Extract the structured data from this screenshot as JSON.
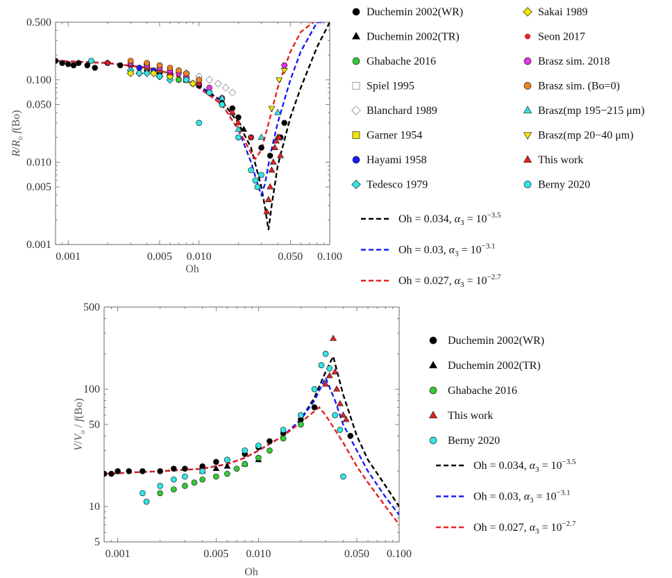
{
  "chart_data": [
    {
      "type": "scatter",
      "xlabel": "Oh",
      "ylabel": "R/R_o f(Bo)",
      "x_scale": "log",
      "y_scale": "log",
      "xlim": [
        0.0008,
        0.1
      ],
      "ylim": [
        0.001,
        0.5
      ],
      "x_ticks": [
        0.001,
        0.005,
        0.01,
        0.05,
        0.1
      ],
      "x_tick_labels": [
        "0.001",
        "0.005",
        "0.010",
        "0.050",
        "0.100"
      ],
      "y_ticks": [
        0.001,
        0.005,
        0.01,
        0.05,
        0.1,
        0.5
      ],
      "y_tick_labels": [
        "0.001",
        "0.005",
        "0.010",
        "0.050",
        "0.100",
        "0.500"
      ],
      "series": [
        {
          "name": "Duchemin 2002(WR)",
          "marker": "circle",
          "color": "#000000",
          "x": [
            0.0008,
            0.0009,
            0.001,
            0.0011,
            0.0012,
            0.0014,
            0.0016,
            0.002,
            0.0025,
            0.003,
            0.0035,
            0.004,
            0.005,
            0.006,
            0.007,
            0.008,
            0.01,
            0.012,
            0.015,
            0.018,
            0.02,
            0.025,
            0.03,
            0.035,
            0.042,
            0.045
          ],
          "y": [
            0.17,
            0.16,
            0.155,
            0.15,
            0.16,
            0.15,
            0.14,
            0.16,
            0.15,
            0.15,
            0.14,
            0.13,
            0.12,
            0.11,
            0.1,
            0.1,
            0.085,
            0.07,
            0.06,
            0.045,
            0.035,
            0.02,
            0.015,
            0.012,
            0.02,
            0.03
          ]
        },
        {
          "name": "Duchemin 2002(TR)",
          "marker": "triangle",
          "color": "#000000",
          "x": [
            0.015,
            0.018,
            0.02,
            0.022
          ],
          "y": [
            0.055,
            0.04,
            0.03,
            0.025
          ]
        },
        {
          "name": "Ghabache 2016",
          "marker": "circle",
          "color": "#33cc33",
          "x": [
            0.004,
            0.005,
            0.007,
            0.009,
            0.012,
            0.015
          ],
          "y": [
            0.14,
            0.13,
            0.1,
            0.09,
            0.07,
            0.05
          ]
        },
        {
          "name": "Spiel 1995",
          "marker": "square-open",
          "color": "#888888",
          "x": [
            0.004,
            0.006,
            0.008
          ],
          "y": [
            0.15,
            0.12,
            0.1
          ]
        },
        {
          "name": "Blanchard 1989",
          "marker": "diamond-open",
          "color": "#888888",
          "x": [
            0.008,
            0.01,
            0.012,
            0.014,
            0.016,
            0.018
          ],
          "y": [
            0.12,
            0.11,
            0.1,
            0.09,
            0.08,
            0.07
          ]
        },
        {
          "name": "Garner 1954",
          "marker": "square",
          "color": "#f2e600",
          "x": [
            0.004,
            0.006,
            0.008
          ],
          "y": [
            0.15,
            0.12,
            0.1
          ]
        },
        {
          "name": "Hayami 1958",
          "marker": "circle",
          "color": "#1a1aff",
          "x": [
            0.0035,
            0.0045,
            0.006,
            0.008,
            0.01
          ],
          "y": [
            0.14,
            0.13,
            0.12,
            0.1,
            0.09
          ]
        },
        {
          "name": "Tedesco 1979",
          "marker": "diamond",
          "color": "#33e6e6",
          "x": [
            0.003,
            0.0035,
            0.004,
            0.005,
            0.006
          ],
          "y": [
            0.13,
            0.12,
            0.12,
            0.11,
            0.1
          ]
        },
        {
          "name": "Sakai 1989",
          "marker": "diamond",
          "color": "#f2e600",
          "x": [
            0.003,
            0.0045,
            0.006,
            0.009
          ],
          "y": [
            0.12,
            0.12,
            0.11,
            0.09
          ]
        },
        {
          "name": "Seon 2017",
          "marker": "circle-small",
          "color": "#dd2222",
          "x": [
            0.002,
            0.003,
            0.004,
            0.005,
            0.006,
            0.008,
            0.01,
            0.012,
            0.015,
            0.018,
            0.02,
            0.025
          ],
          "y": [
            0.16,
            0.15,
            0.14,
            0.13,
            0.12,
            0.1,
            0.09,
            0.07,
            0.05,
            0.04,
            0.03,
            0.02
          ]
        },
        {
          "name": "Brasz sim. 2018",
          "marker": "circle",
          "color": "#e633e6",
          "x": [
            0.003,
            0.004,
            0.005,
            0.006,
            0.007,
            0.008,
            0.01,
            0.012,
            0.015,
            0.045
          ],
          "y": [
            0.16,
            0.15,
            0.14,
            0.13,
            0.12,
            0.11,
            0.1,
            0.08,
            0.06,
            0.15
          ]
        },
        {
          "name": "Brasz sim. (Bo=0)",
          "marker": "circle",
          "color": "#f08020",
          "x": [
            0.003,
            0.004,
            0.005,
            0.006,
            0.007,
            0.008,
            0.01
          ],
          "y": [
            0.17,
            0.16,
            0.15,
            0.14,
            0.13,
            0.12,
            0.1
          ]
        },
        {
          "name": "Brasz(mp 195−215 μm)",
          "marker": "triangle",
          "color": "#33e6e6",
          "x": [
            0.008,
            0.015,
            0.02,
            0.03,
            0.04
          ],
          "y": [
            0.1,
            0.06,
            0.025,
            0.02,
            0.04
          ]
        },
        {
          "name": "Brasz(mp 20−40 μm)",
          "marker": "triangle-down",
          "color": "#f2e600",
          "x": [
            0.036,
            0.041,
            0.045
          ],
          "y": [
            0.045,
            0.1,
            0.13
          ]
        },
        {
          "name": "This work",
          "marker": "triangle",
          "color": "#e62020",
          "x": [
            0.033,
            0.034,
            0.035,
            0.036,
            0.037,
            0.038,
            0.039,
            0.04,
            0.041,
            0.042
          ],
          "y": [
            0.0025,
            0.0035,
            0.005,
            0.008,
            0.01,
            0.015,
            0.018,
            0.02,
            0.02,
            0.012
          ]
        },
        {
          "name": "Berny 2020",
          "marker": "circle",
          "color": "#33e6e6",
          "x": [
            0.0015,
            0.0035,
            0.005,
            0.008,
            0.01,
            0.012,
            0.015,
            0.02,
            0.025,
            0.027,
            0.028,
            0.03
          ],
          "y": [
            0.17,
            0.12,
            0.11,
            0.1,
            0.03,
            0.07,
            0.05,
            0.02,
            0.008,
            0.006,
            0.005,
            0.007
          ]
        }
      ],
      "curves": [
        {
          "name": "Oh = 0.034, α3 = 10^−3.5",
          "color": "#000000",
          "x": [
            0.0008,
            0.002,
            0.004,
            0.006,
            0.008,
            0.01,
            0.015,
            0.02,
            0.025,
            0.03,
            0.032,
            0.034,
            0.036,
            0.04,
            0.05,
            0.06,
            0.08,
            0.1
          ],
          "y": [
            0.17,
            0.16,
            0.14,
            0.12,
            0.1,
            0.085,
            0.055,
            0.03,
            0.015,
            0.005,
            0.0028,
            0.0015,
            0.003,
            0.009,
            0.035,
            0.08,
            0.25,
            0.5
          ]
        },
        {
          "name": "Oh = 0.03, α3 = 10^−3.1",
          "color": "#1a1aff",
          "x": [
            0.0008,
            0.002,
            0.004,
            0.006,
            0.008,
            0.01,
            0.015,
            0.02,
            0.025,
            0.028,
            0.03,
            0.032,
            0.035,
            0.04,
            0.05,
            0.06,
            0.08,
            0.09
          ],
          "y": [
            0.17,
            0.16,
            0.14,
            0.12,
            0.1,
            0.085,
            0.05,
            0.025,
            0.01,
            0.0055,
            0.004,
            0.0055,
            0.012,
            0.03,
            0.1,
            0.22,
            0.5,
            0.5
          ]
        },
        {
          "name": "Oh = 0.027, α3 = 10^−2.7",
          "color": "#e62020",
          "x": [
            0.0008,
            0.002,
            0.004,
            0.006,
            0.008,
            0.01,
            0.015,
            0.02,
            0.025,
            0.027,
            0.03,
            0.035,
            0.04,
            0.05,
            0.06,
            0.075
          ],
          "y": [
            0.17,
            0.16,
            0.14,
            0.12,
            0.1,
            0.08,
            0.05,
            0.025,
            0.013,
            0.011,
            0.014,
            0.035,
            0.08,
            0.22,
            0.38,
            0.5
          ]
        }
      ],
      "legend_placement": "right"
    },
    {
      "type": "scatter",
      "xlabel": "Oh",
      "ylabel": "V/V_o / f(Bo)",
      "x_scale": "log",
      "y_scale": "log",
      "xlim": [
        0.0008,
        0.1
      ],
      "ylim": [
        5,
        500
      ],
      "x_ticks": [
        0.001,
        0.005,
        0.01,
        0.05,
        0.1
      ],
      "x_tick_labels": [
        "0.001",
        "0.005",
        "0.010",
        "0.050",
        "0.100"
      ],
      "y_ticks": [
        5,
        10,
        50,
        100,
        500
      ],
      "y_tick_labels": [
        "5",
        "10",
        "50",
        "100",
        "500"
      ],
      "series": [
        {
          "name": "Duchemin 2002(WR)",
          "marker": "circle",
          "color": "#000000",
          "x": [
            0.0008,
            0.0009,
            0.001,
            0.0012,
            0.0015,
            0.002,
            0.0025,
            0.003,
            0.004,
            0.005,
            0.006,
            0.008,
            0.01,
            0.012,
            0.015,
            0.02,
            0.025,
            0.045
          ],
          "y": [
            19,
            19,
            20,
            20,
            20,
            20,
            21,
            21,
            22,
            24,
            25,
            28,
            32,
            36,
            42,
            55,
            70,
            40
          ]
        },
        {
          "name": "Duchemin 2002(TR)",
          "marker": "triangle",
          "color": "#000000",
          "x": [
            0.004,
            0.005,
            0.006,
            0.008,
            0.01
          ],
          "y": [
            20,
            21,
            22,
            23,
            25
          ]
        },
        {
          "name": "Ghabache 2016",
          "marker": "circle",
          "color": "#33cc33",
          "x": [
            0.002,
            0.0025,
            0.003,
            0.0035,
            0.004,
            0.005,
            0.006,
            0.007,
            0.008,
            0.01,
            0.012,
            0.015,
            0.02
          ],
          "y": [
            13,
            14,
            15,
            16,
            17,
            18,
            19,
            21,
            23,
            26,
            30,
            38,
            50
          ]
        },
        {
          "name": "This work",
          "marker": "triangle",
          "color": "#e62020",
          "x": [
            0.03,
            0.032,
            0.034,
            0.035,
            0.036,
            0.038,
            0.04,
            0.042
          ],
          "y": [
            110,
            130,
            270,
            140,
            100,
            75,
            60,
            55
          ]
        },
        {
          "name": "Berny 2020",
          "marker": "circle",
          "color": "#33e6e6",
          "x": [
            0.0015,
            0.0016,
            0.002,
            0.0025,
            0.003,
            0.004,
            0.006,
            0.008,
            0.01,
            0.015,
            0.02,
            0.025,
            0.028,
            0.03,
            0.032,
            0.035,
            0.038,
            0.04
          ],
          "y": [
            13,
            11,
            15,
            17,
            18,
            20,
            25,
            30,
            33,
            45,
            60,
            100,
            160,
            200,
            150,
            60,
            45,
            18
          ]
        }
      ],
      "curves": [
        {
          "name": "Oh = 0.034, α3 = 10^−3.5",
          "color": "#000000",
          "x": [
            0.0008,
            0.002,
            0.004,
            0.006,
            0.008,
            0.01,
            0.015,
            0.02,
            0.025,
            0.03,
            0.034,
            0.04,
            0.05,
            0.06,
            0.08,
            0.1
          ],
          "y": [
            19,
            20,
            21,
            23,
            26,
            30,
            40,
            55,
            85,
            140,
            190,
            90,
            40,
            25,
            15,
            10
          ]
        },
        {
          "name": "Oh = 0.03, α3 = 10^−3.1",
          "color": "#1a1aff",
          "x": [
            0.0008,
            0.002,
            0.004,
            0.006,
            0.008,
            0.01,
            0.015,
            0.02,
            0.025,
            0.03,
            0.035,
            0.04,
            0.05,
            0.06,
            0.08,
            0.1
          ],
          "y": [
            19,
            20,
            21,
            23,
            26,
            30,
            40,
            55,
            80,
            125,
            80,
            50,
            30,
            20,
            12,
            8.5
          ]
        },
        {
          "name": "Oh = 0.027, α3 = 10^−2.7",
          "color": "#e62020",
          "x": [
            0.0008,
            0.002,
            0.004,
            0.006,
            0.008,
            0.01,
            0.015,
            0.02,
            0.027,
            0.03,
            0.035,
            0.04,
            0.05,
            0.06,
            0.08,
            0.1
          ],
          "y": [
            19,
            20,
            21,
            23,
            26,
            30,
            40,
            52,
            70,
            60,
            45,
            35,
            22,
            16,
            10,
            7
          ]
        }
      ],
      "legend_placement": "right"
    }
  ],
  "legend1": {
    "col1": [
      "Duchemin 2002(WR)",
      "Duchemin 2002(TR)",
      "Ghabache 2016",
      "Spiel 1995",
      "Blanchard 1989",
      "Garner 1954",
      "Hayami 1958",
      "Tedesco 1979"
    ],
    "col2": [
      "Sakai 1989",
      "Seon 2017",
      "Brasz sim. 2018",
      "Brasz sim. (Bo=0)",
      "Brasz(mp 195−215 μm)",
      "Brasz(mp 20−40 μm)",
      "This work",
      "Berny 2020"
    ],
    "curves": [
      {
        "prefix": "Oh = 0.034, ",
        "alpha": "α",
        "sub": "3",
        "mid": " = 10",
        "sup": "−3.5"
      },
      {
        "prefix": "Oh = 0.03, ",
        "alpha": "α",
        "sub": "3",
        "mid": " = 10",
        "sup": "−3.1"
      },
      {
        "prefix": "Oh = 0.027, ",
        "alpha": "α",
        "sub": "3",
        "mid": " = 10",
        "sup": "−2.7"
      }
    ]
  },
  "legend2": {
    "items": [
      "Duchemin 2002(WR)",
      "Duchemin 2002(TR)",
      "Ghabache 2016",
      "This work",
      "Berny 2020"
    ]
  }
}
